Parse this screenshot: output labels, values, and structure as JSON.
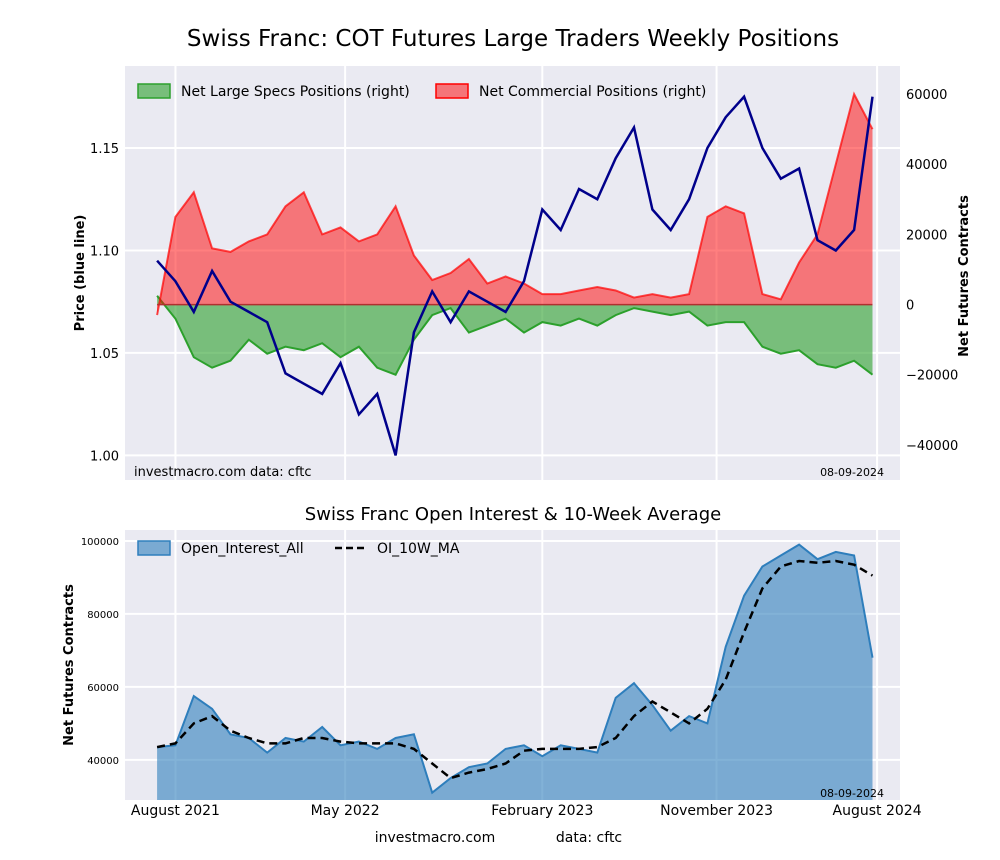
{
  "figure": {
    "title": "Swiss Franc: COT Futures Large Traders Weekly Positions",
    "footer_left": "investmacro.com",
    "footer_right": "data: cftc"
  },
  "chart_data": [
    {
      "type": "line",
      "title": "",
      "ylabel": "Price (blue line)",
      "y2label": "Net Futures Contracts",
      "ylim": [
        0.988,
        1.19
      ],
      "y2lim": [
        -50000,
        68000
      ],
      "yticks": [
        "1.00",
        "1.05",
        "1.10",
        "1.15"
      ],
      "y2ticks": [
        "60000",
        "40000",
        "20000",
        "0",
        "−20000",
        "−40000"
      ],
      "x": [
        0,
        4,
        8,
        12,
        16,
        20,
        24,
        28,
        32,
        36,
        40,
        44,
        48,
        52,
        56,
        60,
        64,
        68,
        72,
        76,
        80,
        84,
        88,
        92,
        96,
        100,
        104,
        108,
        112,
        116,
        120,
        124,
        128,
        132,
        136,
        140,
        144,
        148,
        152,
        156
      ],
      "xlim": [
        -7,
        162
      ],
      "xtick_positions": [
        4,
        41,
        84,
        122,
        157
      ],
      "watermark": "investmacro.com   data: cftc",
      "date_label": "08-09-2024",
      "legend": "top-left",
      "series": [
        {
          "name": "Net Large Specs Positions (right)",
          "color": "#2ca02c",
          "values": [
            2500,
            -4000,
            -15000,
            -18000,
            -16000,
            -10000,
            -14000,
            -12000,
            -13000,
            -11000,
            -15000,
            -12000,
            -18000,
            -20000,
            -10000,
            -3000,
            -1000,
            -8000,
            -6000,
            -4000,
            -8000,
            -5000,
            -6000,
            -4000,
            -6000,
            -3000,
            -1000,
            -2000,
            -3000,
            -2000,
            -6000,
            -5000,
            -5000,
            -12000,
            -14000,
            -13000,
            -17000,
            -18000,
            -16000,
            -20000
          ]
        },
        {
          "name": "Net Commercial Positions (right)",
          "color": "#ff0000",
          "values": [
            -3000,
            25000,
            32000,
            16000,
            15000,
            18000,
            20000,
            28000,
            32000,
            20000,
            22000,
            18000,
            20000,
            28000,
            14000,
            7000,
            9000,
            13000,
            6000,
            8000,
            6000,
            3000,
            3000,
            4000,
            5000,
            4000,
            2000,
            3000,
            2000,
            3000,
            25000,
            28000,
            26000,
            3000,
            1500,
            12000,
            20000,
            40000,
            60000,
            50000
          ]
        },
        {
          "name": "Price",
          "color": "#00008b",
          "values": [
            1.095,
            1.085,
            1.07,
            1.09,
            1.075,
            1.07,
            1.065,
            1.04,
            1.035,
            1.03,
            1.045,
            1.02,
            1.03,
            1.0,
            1.06,
            1.08,
            1.065,
            1.08,
            1.075,
            1.07,
            1.085,
            1.12,
            1.11,
            1.13,
            1.125,
            1.145,
            1.16,
            1.12,
            1.11,
            1.125,
            1.15,
            1.165,
            1.175,
            1.15,
            1.135,
            1.14,
            1.105,
            1.1,
            1.11,
            1.175
          ]
        }
      ]
    },
    {
      "type": "area",
      "title": "Swiss Franc Open Interest & 10-Week Average",
      "ylabel": "Net Futures Contracts",
      "ylim": [
        29000,
        103000
      ],
      "yticks": [
        "40000",
        "60000",
        "80000",
        "100000"
      ],
      "xticks": [
        "August 2021",
        "May 2022",
        "February 2023",
        "November 2023",
        "August 2024"
      ],
      "xlim": [
        -7,
        162
      ],
      "xtick_positions": [
        4,
        41,
        84,
        122,
        157
      ],
      "date_label": "08-09-2024",
      "legend": "top-left",
      "series": [
        {
          "name": "Open_Interest_All",
          "color": "#2e7ebc",
          "values": [
            43500,
            44000,
            57500,
            54000,
            47000,
            46000,
            42000,
            46000,
            45000,
            49000,
            44000,
            45000,
            43000,
            46000,
            47000,
            31000,
            35000,
            38000,
            39000,
            43000,
            44000,
            41000,
            44000,
            43000,
            42000,
            57000,
            61000,
            55000,
            48000,
            52000,
            50000,
            71000,
            85000,
            93000,
            96000,
            99000,
            95000,
            97000,
            96000,
            68000
          ]
        },
        {
          "name": "OI_10W_MA",
          "color": "#000000",
          "values": [
            43500,
            44500,
            50000,
            52000,
            48000,
            46000,
            44500,
            44500,
            46000,
            46000,
            45000,
            44500,
            44500,
            44500,
            43000,
            39000,
            35000,
            36500,
            37500,
            39000,
            42500,
            43000,
            43000,
            43000,
            43500,
            46000,
            52000,
            56000,
            53000,
            50000,
            54000,
            62000,
            75000,
            87000,
            93000,
            94500,
            94000,
            94500,
            93500,
            90500
          ]
        }
      ]
    }
  ]
}
